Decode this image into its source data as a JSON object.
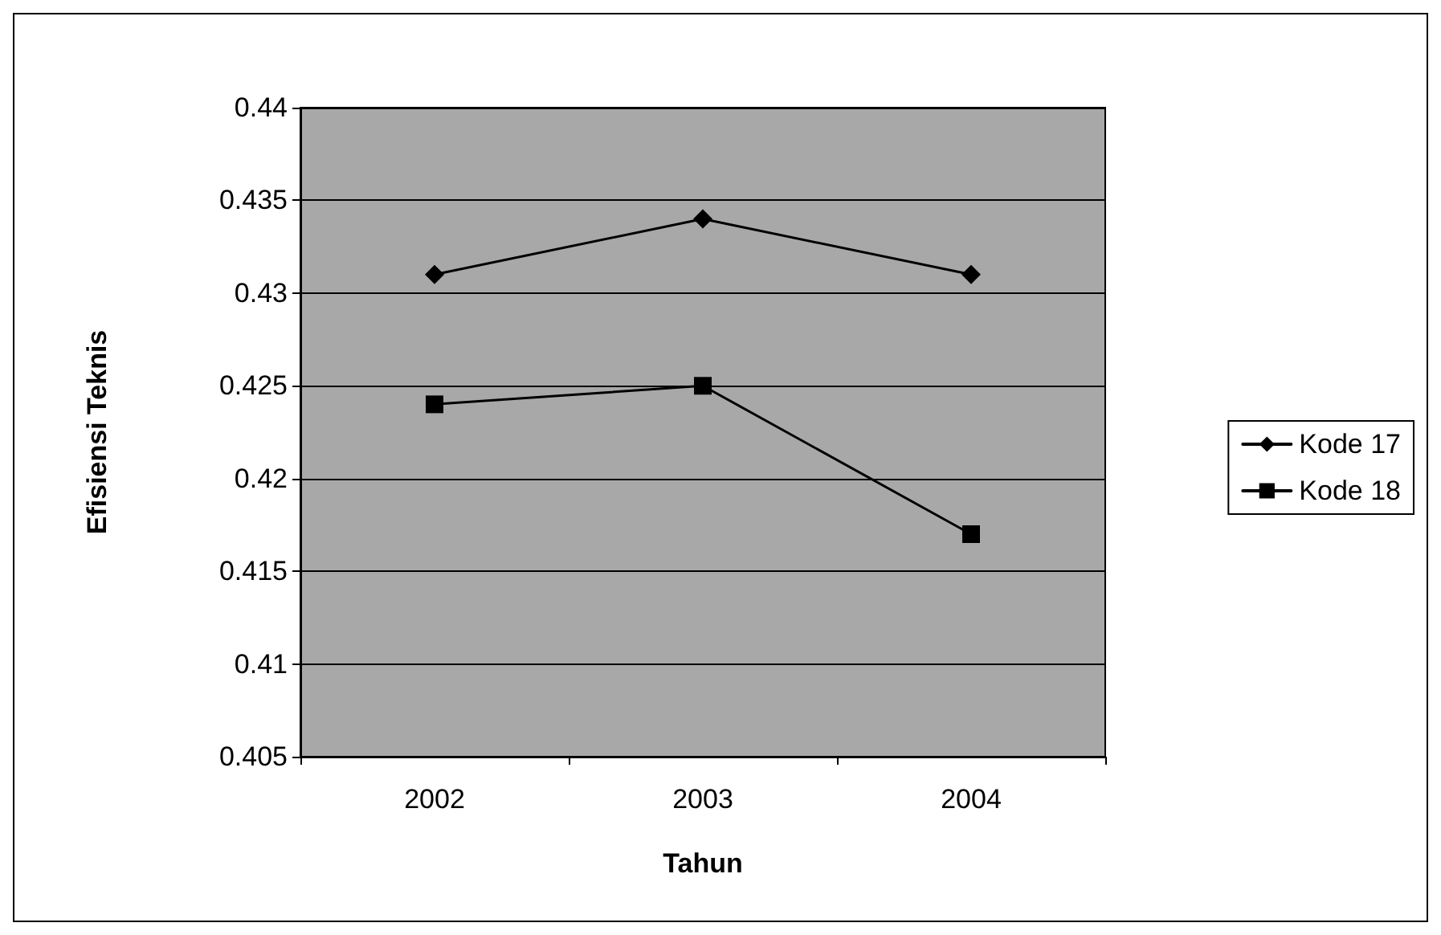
{
  "chart_data": {
    "type": "line",
    "xlabel": "Tahun",
    "ylabel": "Efisiensi Teknis",
    "categories": [
      "2002",
      "2003",
      "2004"
    ],
    "series": [
      {
        "name": "Kode 17",
        "color": "#000000",
        "marker": "diamond",
        "values": [
          0.431,
          0.434,
          0.431
        ]
      },
      {
        "name": "Kode 18",
        "color": "#000000",
        "marker": "square",
        "values": [
          0.424,
          0.425,
          0.417
        ]
      }
    ],
    "ylim": [
      0.405,
      0.44
    ],
    "yticks": [
      0.405,
      0.41,
      0.415,
      0.42,
      0.425,
      0.43,
      0.435,
      0.44
    ],
    "grid": "y",
    "legend": "right",
    "line_style": "solid"
  }
}
